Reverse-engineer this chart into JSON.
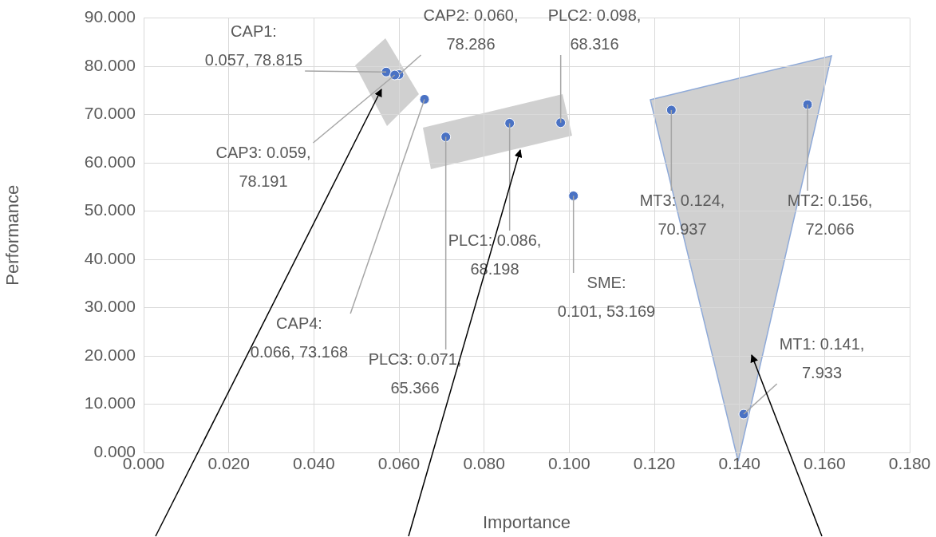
{
  "chart_data": {
    "type": "scatter",
    "xlabel": "Importance",
    "ylabel": "Performance",
    "x": [
      0.057,
      0.06,
      0.059,
      0.066,
      0.086,
      0.098,
      0.071,
      0.101,
      0.141,
      0.156,
      0.124
    ],
    "series": [
      {
        "color": "#4a72c4",
        "values": [
          78.815,
          78.286,
          78.191,
          73.168,
          68.198,
          68.316,
          65.366,
          53.169,
          7.933,
          72.066,
          70.937
        ]
      }
    ],
    "xlim": [
      0,
      0.18
    ],
    "xticks": [
      {
        "value": 0,
        "label": "0.000"
      },
      {
        "value": 0.02,
        "label": "0.020"
      },
      {
        "value": 0.04,
        "label": "0.040"
      },
      {
        "value": 0.06,
        "label": "0.060"
      },
      {
        "value": 0.08,
        "label": "0.080"
      },
      {
        "value": 0.1,
        "label": "0.100"
      },
      {
        "value": 0.12,
        "label": "0.120"
      },
      {
        "value": 0.14,
        "label": "0.140"
      },
      {
        "value": 0.16,
        "label": "0.160"
      },
      {
        "value": 0.18,
        "label": "0.180"
      }
    ],
    "ylim": [
      0,
      90
    ],
    "yticks": [
      {
        "value": 0,
        "label": "0.000"
      },
      {
        "value": 10,
        "label": "10.000"
      },
      {
        "value": 20,
        "label": "20.000"
      },
      {
        "value": 30,
        "label": "30.000"
      },
      {
        "value": 40,
        "label": "40.000"
      },
      {
        "value": 50,
        "label": "50.000"
      },
      {
        "value": 60,
        "label": "60.000"
      },
      {
        "value": 70,
        "label": "70.000"
      },
      {
        "value": 80,
        "label": "80.000"
      },
      {
        "value": 90,
        "label": "90.000"
      }
    ],
    "grid": true,
    "legend": false,
    "marker": "circle",
    "annotations": [
      {
        "text": "CAP1: 0.057, 78.815",
        "x": 0.057,
        "y": 78.815
      },
      {
        "text": "CAP2: 0.060, 78.286",
        "x": 0.06,
        "y": 78.286
      },
      {
        "text": "CAP3: 0.059, 78.191",
        "x": 0.059,
        "y": 78.191
      },
      {
        "text": "CAP4: 0.066, 73.168",
        "x": 0.066,
        "y": 73.168
      },
      {
        "text": "PLC1: 0.086, 68.198",
        "x": 0.086,
        "y": 68.198
      },
      {
        "text": "PLC2: 0.098, 68.316",
        "x": 0.098,
        "y": 68.316
      },
      {
        "text": "PLC3: 0.071, 65.366",
        "x": 0.071,
        "y": 65.366
      },
      {
        "text": "SME: 0.101, 53.169",
        "x": 0.101,
        "y": 53.169
      },
      {
        "text": "MT1: 0.141, 7.933",
        "x": 0.141,
        "y": 7.933
      },
      {
        "text": "MT2: 0.156, 72.066",
        "x": 0.156,
        "y": 72.066
      },
      {
        "text": "MT3: 0.124, 70.937",
        "x": 0.124,
        "y": 70.937
      }
    ]
  }
}
